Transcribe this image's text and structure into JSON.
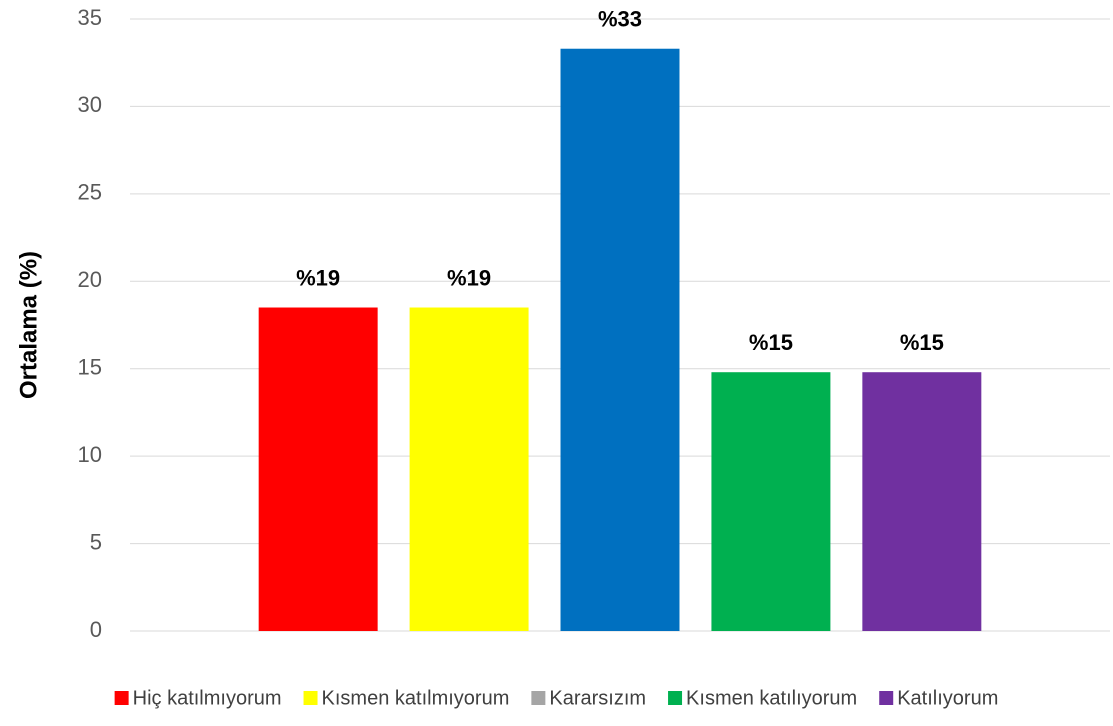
{
  "chart_data": {
    "type": "bar",
    "y_label": "Ortalama (%)",
    "categories": [
      null
    ],
    "series": [
      {
        "name": "Hiç katılmıyorum",
        "color": "#ff0000",
        "values": [
          18.5
        ],
        "value_labels": [
          "%19"
        ]
      },
      {
        "name": "Kısmen katılmıyorum",
        "color": "#ffff00",
        "values": [
          18.5
        ],
        "value_labels": [
          "%19"
        ]
      },
      {
        "name": "Kararsızım",
        "color": "#0070c0",
        "legend_color": "#a5a5a5",
        "values": [
          33.3
        ],
        "value_labels": [
          "%33"
        ]
      },
      {
        "name": "Kısmen katılıyorum",
        "color": "#00b050",
        "values": [
          14.8
        ],
        "value_labels": [
          "%15"
        ]
      },
      {
        "name": "Katılıyorum",
        "color": "#7030a0",
        "values": [
          14.8
        ],
        "value_labels": [
          "%15"
        ]
      }
    ],
    "ylim": [
      0,
      35
    ],
    "yticks": [
      0,
      5,
      10,
      15,
      20,
      25,
      30,
      35
    ],
    "grid": true,
    "legend": "bottom"
  }
}
